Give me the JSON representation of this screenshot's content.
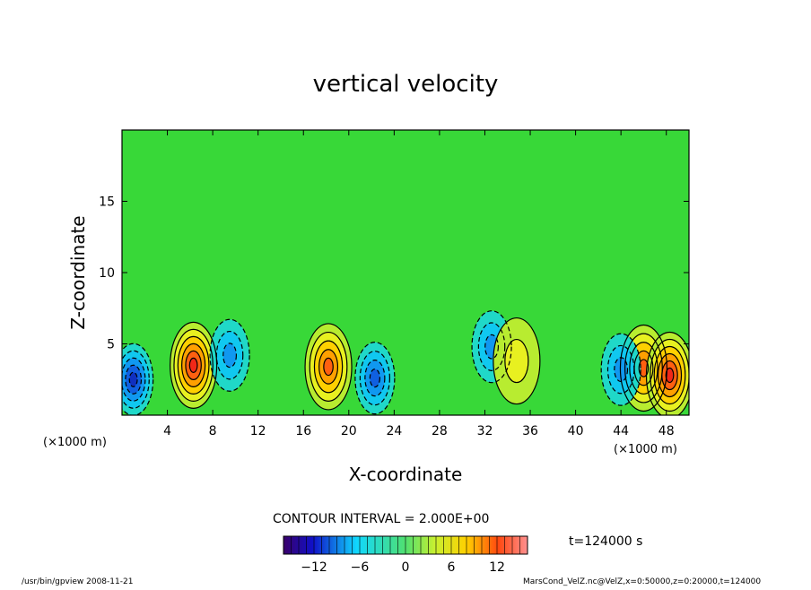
{
  "chart_data": {
    "type": "heatmap",
    "title": "vertical velocity",
    "xlabel": "X-coordinate",
    "ylabel": "Z-coordinate",
    "x_unit": "(×1000 m)",
    "y_unit": "(×1000 m)",
    "x_range": [
      0,
      50
    ],
    "y_range": [
      0,
      20
    ],
    "x_ticks": [
      "4",
      "8",
      "12",
      "16",
      "20",
      "24",
      "28",
      "32",
      "36",
      "40",
      "44",
      "48"
    ],
    "y_ticks": [
      "5",
      "10",
      "15"
    ],
    "contour_interval_text": "CONTOUR INTERVAL = 2.000E+00",
    "time_text": "t=124000 s",
    "colorbar": {
      "range": [
        -16,
        16
      ],
      "ticks": [
        "−12",
        "−6",
        "0",
        "6",
        "12"
      ]
    },
    "features": [
      {
        "kind": "updraft",
        "x": 6.3,
        "z": 3.5,
        "peak": 14
      },
      {
        "kind": "downdraft",
        "x": 1.0,
        "z": 2.5,
        "peak": -12
      },
      {
        "kind": "downdraft",
        "x": 9.5,
        "z": 4.2,
        "peak": -8
      },
      {
        "kind": "updraft",
        "x": 18.2,
        "z": 3.4,
        "peak": 13
      },
      {
        "kind": "downdraft",
        "x": 22.3,
        "z": 2.6,
        "peak": -10
      },
      {
        "kind": "downdraft",
        "x": 32.6,
        "z": 4.8,
        "peak": -7
      },
      {
        "kind": "updraft",
        "x": 34.8,
        "z": 3.8,
        "peak": 6
      },
      {
        "kind": "updraft",
        "x": 46.0,
        "z": 3.3,
        "peak": 12
      },
      {
        "kind": "updraft",
        "x": 48.3,
        "z": 2.8,
        "peak": 14
      },
      {
        "kind": "downdraft",
        "x": 44.0,
        "z": 3.2,
        "peak": -8
      }
    ]
  },
  "footer": {
    "left": "/usr/bin/gpview  2008-11-21",
    "right": "MarsCond_VelZ.nc@VelZ,x=0:50000,z=0:20000,t=124000"
  },
  "colors": {
    "background": "#ffffff",
    "frame": "#000000"
  }
}
